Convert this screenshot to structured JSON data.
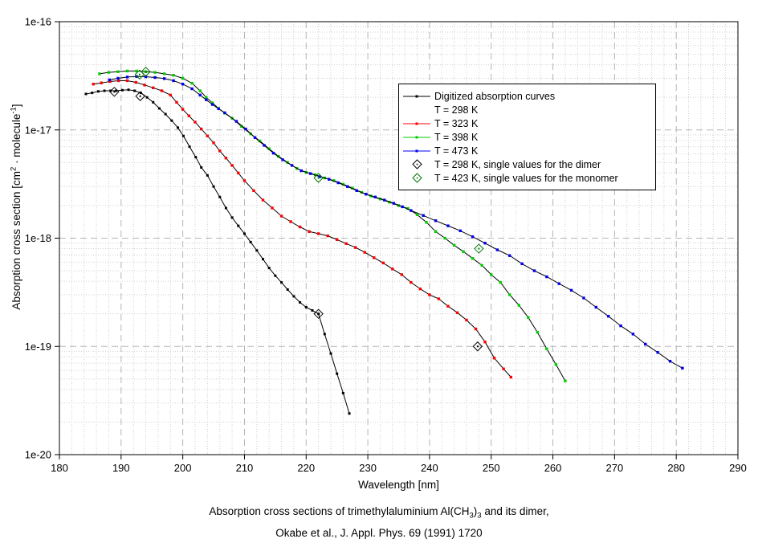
{
  "axes": {
    "x_label": "Wavelength [nm]",
    "y_label_pre": "Absorption cross section [cm",
    "y_label_sup1": "2",
    "y_label_mid": " · molecule",
    "y_label_sup2": "-1",
    "y_label_post": "]"
  },
  "caption": {
    "line1_pre": "Absorption cross sections of trimethylaluminium Al(CH",
    "line1_sub1": "3",
    "line1_mid": ")",
    "line1_sub2": "3",
    "line1_post": " and its dimer,",
    "line2": "Okabe et al., J. Appl. Phys. 69 (1991) 1720"
  },
  "legend": {
    "items": [
      {
        "type": "line",
        "color": "#000000",
        "label": "Digitized absorption curves"
      },
      {
        "type": "none",
        "color": "#000000",
        "label": "T = 298 K"
      },
      {
        "type": "line",
        "color": "#ff0000",
        "label": "T = 323 K"
      },
      {
        "type": "line",
        "color": "#00cc00",
        "label": "T = 398 K"
      },
      {
        "type": "line",
        "color": "#0000ee",
        "label": "T = 473 K"
      },
      {
        "type": "diamond",
        "color": "#000000",
        "label": "T = 298 K, single values for the dimer"
      },
      {
        "type": "diamond",
        "color": "#007700",
        "label": "T = 423 K, single values for the monomer"
      }
    ]
  },
  "chart_data": {
    "type": "line",
    "title": "",
    "xlabel": "Wavelength [nm]",
    "ylabel": "Absorption cross section [cm2 · molecule-1]",
    "x_axis": {
      "min": 180,
      "max": 290,
      "major_ticks": [
        180,
        190,
        200,
        210,
        220,
        230,
        240,
        250,
        260,
        270,
        280,
        290
      ],
      "minor_step": 2
    },
    "y_axis": {
      "scale": "log",
      "min": 1e-20,
      "max": 1e-16,
      "major_ticks": [
        1e-16,
        1e-17,
        1e-18,
        1e-19,
        1e-20
      ],
      "tick_labels": [
        "1e-16",
        "1e-17",
        "1e-18",
        "1e-19",
        "1e-20"
      ]
    },
    "grid": {
      "major_style": "dashed",
      "minor_style": "dotted",
      "major_color": "#b5b5b5",
      "minor_color": "#cfcfcf"
    },
    "legend_position": "top-right",
    "series": [
      {
        "name": "T = 298 K",
        "legend": "Digitized absorption curves / T = 298 K",
        "color": "#000000",
        "marker_size": 3,
        "points": [
          [
            184.3,
            2.15e-17
          ],
          [
            185.3,
            2.2e-17
          ],
          [
            186.3,
            2.27e-17
          ],
          [
            187.3,
            2.3e-17
          ],
          [
            188.3,
            2.3e-17
          ],
          [
            189.2,
            2.3e-17
          ],
          [
            190.2,
            2.33e-17
          ],
          [
            191.2,
            2.35e-17
          ],
          [
            192.2,
            2.3e-17
          ],
          [
            193.2,
            2.2e-17
          ],
          [
            194.2,
            2e-17
          ],
          [
            195.2,
            1.8e-17
          ],
          [
            196.2,
            1.58e-17
          ],
          [
            197.2,
            1.4e-17
          ],
          [
            198.2,
            1.22e-17
          ],
          [
            199.2,
            1.05e-17
          ],
          [
            200.1,
            8.8e-18
          ],
          [
            201.1,
            7e-18
          ],
          [
            202.1,
            5.6e-18
          ],
          [
            203,
            4.5e-18
          ],
          [
            204,
            3.8e-18
          ],
          [
            205,
            3e-18
          ],
          [
            206,
            2.4e-18
          ],
          [
            207,
            1.9e-18
          ],
          [
            208,
            1.55e-18
          ],
          [
            209,
            1.3e-18
          ],
          [
            210,
            1.1e-18
          ],
          [
            211,
            9.2e-19
          ],
          [
            212,
            7.7e-19
          ],
          [
            213,
            6.4e-19
          ],
          [
            214,
            5.3e-19
          ],
          [
            215,
            4.5e-19
          ],
          [
            216,
            3.9e-19
          ],
          [
            217,
            3.35e-19
          ],
          [
            218,
            2.9e-19
          ],
          [
            219,
            2.55e-19
          ],
          [
            220,
            2.3e-19
          ],
          [
            221,
            2.15e-19
          ],
          [
            222,
            2e-19
          ],
          [
            223,
            1.3e-19
          ],
          [
            224,
            8.6e-20
          ],
          [
            225,
            5.6e-20
          ],
          [
            226,
            3.7e-20
          ],
          [
            227,
            2.4e-20
          ]
        ]
      },
      {
        "name": "T = 323 K",
        "color": "#ff0000",
        "marker_size": 3.4,
        "points": [
          [
            185.5,
            2.65e-17
          ],
          [
            186.8,
            2.72e-17
          ],
          [
            188.2,
            2.8e-17
          ],
          [
            189.6,
            2.85e-17
          ],
          [
            191,
            2.85e-17
          ],
          [
            192.4,
            2.75e-17
          ],
          [
            193.8,
            2.6e-17
          ],
          [
            195.2,
            2.45e-17
          ],
          [
            196.6,
            2.3e-17
          ],
          [
            198,
            2.1e-17
          ],
          [
            199,
            1.8e-17
          ],
          [
            200,
            1.55e-17
          ],
          [
            201,
            1.35e-17
          ],
          [
            202,
            1.18e-17
          ],
          [
            203,
            1.02e-17
          ],
          [
            204,
            8.8e-18
          ],
          [
            205,
            7.6e-18
          ],
          [
            206,
            6.4e-18
          ],
          [
            207,
            5.5e-18
          ],
          [
            208,
            4.7e-18
          ],
          [
            209,
            4e-18
          ],
          [
            210,
            3.4e-18
          ],
          [
            211.5,
            2.75e-18
          ],
          [
            213,
            2.25e-18
          ],
          [
            214.5,
            1.9e-18
          ],
          [
            216,
            1.6e-18
          ],
          [
            217.5,
            1.42e-18
          ],
          [
            219,
            1.27e-18
          ],
          [
            220.5,
            1.15e-18
          ],
          [
            222,
            1.1e-18
          ],
          [
            223.5,
            1.05e-18
          ],
          [
            225,
            9.7e-19
          ],
          [
            226.5,
            8.9e-19
          ],
          [
            228,
            8.2e-19
          ],
          [
            229.5,
            7.4e-19
          ],
          [
            231,
            6.6e-19
          ],
          [
            232.5,
            5.9e-19
          ],
          [
            234,
            5.2e-19
          ],
          [
            235.5,
            4.6e-19
          ],
          [
            237,
            3.9e-19
          ],
          [
            238.5,
            3.4e-19
          ],
          [
            240,
            3e-19
          ],
          [
            241.5,
            2.75e-19
          ],
          [
            243,
            2.35e-19
          ],
          [
            244.5,
            2.05e-19
          ],
          [
            246,
            1.75e-19
          ],
          [
            247.5,
            1.45e-19
          ],
          [
            249,
            1.1e-19
          ],
          [
            250.5,
            7.8e-20
          ],
          [
            252,
            6.2e-20
          ],
          [
            253.2,
            5.2e-20
          ]
        ]
      },
      {
        "name": "T = 398 K",
        "color": "#00cc00",
        "marker_size": 3.4,
        "points": [
          [
            186.5,
            3.3e-17
          ],
          [
            188,
            3.4e-17
          ],
          [
            189.5,
            3.45e-17
          ],
          [
            191,
            3.5e-17
          ],
          [
            192.5,
            3.5e-17
          ],
          [
            194,
            3.45e-17
          ],
          [
            195.5,
            3.4e-17
          ],
          [
            197,
            3.3e-17
          ],
          [
            198.5,
            3.2e-17
          ],
          [
            200,
            3e-17
          ],
          [
            201.5,
            2.7e-17
          ],
          [
            202.8,
            2.3e-17
          ],
          [
            203.8,
            2e-17
          ],
          [
            204.8,
            1.78e-17
          ],
          [
            205.8,
            1.58e-17
          ],
          [
            206.8,
            1.43e-17
          ],
          [
            208,
            1.28e-17
          ],
          [
            209.5,
            1.08e-17
          ],
          [
            211,
            9.2e-18
          ],
          [
            212.5,
            7.9e-18
          ],
          [
            214,
            6.7e-18
          ],
          [
            215.5,
            5.7e-18
          ],
          [
            217,
            5e-18
          ],
          [
            218.5,
            4.4e-18
          ],
          [
            220,
            4.05e-18
          ],
          [
            221.5,
            3.85e-18
          ],
          [
            223,
            3.6e-18
          ],
          [
            224.5,
            3.4e-18
          ],
          [
            226,
            3.15e-18
          ],
          [
            227.5,
            2.9e-18
          ],
          [
            229,
            2.65e-18
          ],
          [
            230.5,
            2.45e-18
          ],
          [
            232,
            2.3e-18
          ],
          [
            233.5,
            2.15e-18
          ],
          [
            235,
            2e-18
          ],
          [
            236.5,
            1.88e-18
          ],
          [
            238,
            1.65e-18
          ],
          [
            239.5,
            1.4e-18
          ],
          [
            241,
            1.15e-18
          ],
          [
            242.5,
            1e-18
          ],
          [
            244,
            8.6e-19
          ],
          [
            245.5,
            7.5e-19
          ],
          [
            247,
            6.5e-19
          ],
          [
            248.5,
            5.6e-19
          ],
          [
            250,
            4.6e-19
          ],
          [
            251.5,
            3.9e-19
          ],
          [
            253,
            3e-19
          ],
          [
            254.5,
            2.4e-19
          ],
          [
            256,
            1.85e-19
          ],
          [
            257.5,
            1.35e-19
          ],
          [
            259,
            9.5e-20
          ],
          [
            260.5,
            6.8e-20
          ],
          [
            262,
            4.8e-20
          ]
        ]
      },
      {
        "name": "T = 473 K",
        "color": "#0000ee",
        "marker_size": 3.4,
        "points": [
          [
            188.1,
            2.9e-17
          ],
          [
            189.5,
            3e-17
          ],
          [
            191,
            3.08e-17
          ],
          [
            192.5,
            3.12e-17
          ],
          [
            194,
            3.1e-17
          ],
          [
            195.5,
            3.05e-17
          ],
          [
            197,
            2.98e-17
          ],
          [
            198.5,
            2.85e-17
          ],
          [
            200,
            2.65e-17
          ],
          [
            201.5,
            2.4e-17
          ],
          [
            202.8,
            2.1e-17
          ],
          [
            203.8,
            1.9e-17
          ],
          [
            204.8,
            1.72e-17
          ],
          [
            205.8,
            1.57e-17
          ],
          [
            206.8,
            1.44e-17
          ],
          [
            208.7,
            1.2e-17
          ],
          [
            210.2,
            1.02e-17
          ],
          [
            211.7,
            8.5e-18
          ],
          [
            213.2,
            7.2e-18
          ],
          [
            214.7,
            6.1e-18
          ],
          [
            216.2,
            5.3e-18
          ],
          [
            217.7,
            4.7e-18
          ],
          [
            219.2,
            4.2e-18
          ],
          [
            220.7,
            3.95e-18
          ],
          [
            222.2,
            3.7e-18
          ],
          [
            223.7,
            3.5e-18
          ],
          [
            225.2,
            3.25e-18
          ],
          [
            226.7,
            3e-18
          ],
          [
            228.2,
            2.75e-18
          ],
          [
            229.7,
            2.55e-18
          ],
          [
            231.2,
            2.4e-18
          ],
          [
            232.7,
            2.25e-18
          ],
          [
            234.2,
            2.1e-18
          ],
          [
            235.6,
            1.95e-18
          ],
          [
            237,
            1.8e-18
          ],
          [
            239,
            1.62e-18
          ],
          [
            241,
            1.45e-18
          ],
          [
            243,
            1.3e-18
          ],
          [
            245,
            1.17e-18
          ],
          [
            247,
            1.03e-18
          ],
          [
            249,
            9e-19
          ],
          [
            251,
            7.8e-19
          ],
          [
            253,
            6.9e-19
          ],
          [
            255,
            5.8e-19
          ],
          [
            257,
            5e-19
          ],
          [
            259,
            4.4e-19
          ],
          [
            261,
            3.8e-19
          ],
          [
            263,
            3.3e-19
          ],
          [
            265,
            2.8e-19
          ],
          [
            267,
            2.3e-19
          ],
          [
            269,
            1.9e-19
          ],
          [
            271,
            1.55e-19
          ],
          [
            273,
            1.3e-19
          ],
          [
            275,
            1.05e-19
          ],
          [
            277,
            8.8e-20
          ],
          [
            279,
            7.3e-20
          ],
          [
            281,
            6.3e-20
          ]
        ]
      }
    ],
    "single_values": [
      {
        "name": "T = 298 K, single values for the dimer",
        "color": "#000000",
        "marker": "open-diamond-dot",
        "points": [
          [
            188.9,
            2.25e-17
          ],
          [
            193.1,
            2.05e-17
          ],
          [
            222,
            2e-19
          ],
          [
            247.8,
            1e-19
          ]
        ]
      },
      {
        "name": "T = 423 K, single values for the monomer",
        "color": "#007700",
        "marker": "open-diamond-dot",
        "points": [
          [
            193,
            3.25e-17
          ],
          [
            194,
            3.45e-17
          ],
          [
            222,
            3.6e-18
          ],
          [
            248,
            8e-19
          ]
        ]
      }
    ]
  }
}
